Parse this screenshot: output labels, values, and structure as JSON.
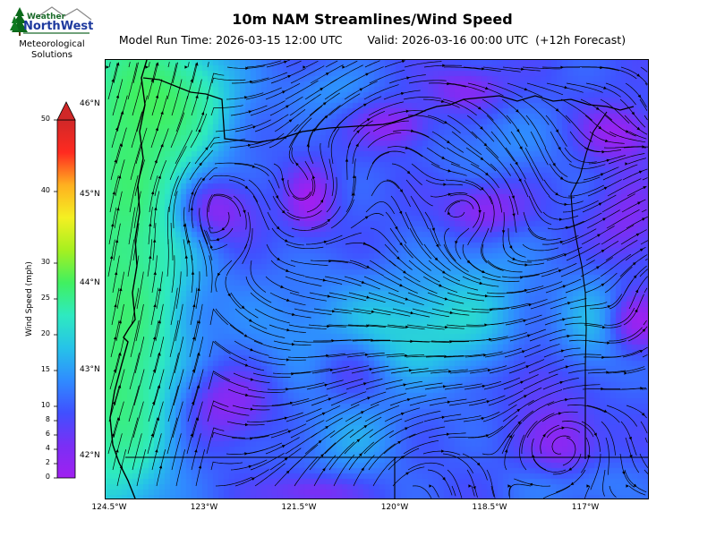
{
  "header": {
    "title": "10m NAM Streamlines/Wind Speed",
    "model_run": "Model Run Time: 2026-03-15 12:00 UTC",
    "valid": "Valid: 2026-03-16 00:00 UTC  (+12h Forecast)"
  },
  "logo": {
    "name_top": "Weather",
    "name_main": "NorthWest",
    "tagline_1": "Meteorological",
    "tagline_2": "Solutions"
  },
  "colorbar": {
    "label": "Wind Speed (mph)",
    "ticks": [
      "0",
      "2",
      "4",
      "6",
      "8",
      "10",
      "15",
      "20",
      "25",
      "30",
      "40",
      "50"
    ],
    "tick_values": [
      0,
      2,
      4,
      6,
      8,
      10,
      15,
      20,
      25,
      30,
      40,
      50
    ],
    "colors": [
      "#a020f0",
      "#7a2ff5",
      "#4050ff",
      "#2f8cff",
      "#26c3e8",
      "#2eeac0",
      "#40f060",
      "#a6f020",
      "#f4f022",
      "#ffb020",
      "#ff2a20",
      "#d02828"
    ]
  },
  "map": {
    "lat_labels": [
      "46°N",
      "45°N",
      "44°N",
      "43°N",
      "42°N"
    ],
    "lon_labels": [
      "124.5°W",
      "123°W",
      "121.5°W",
      "120°W",
      "118.5°W",
      "117°W"
    ]
  }
}
